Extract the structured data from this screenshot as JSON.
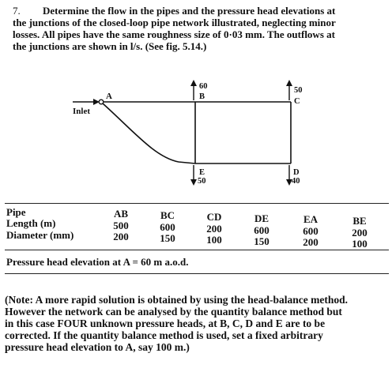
{
  "problem": {
    "number": "7.",
    "lines": [
      "Determine the flow in the pipes and the pressure head elevations at",
      "the junctions of the closed-loop pipe network illustrated, neglecting minor",
      "losses. All pipes have the same roughness size of 0·03 mm. The outflows at",
      "the junctions are shown in l/s. (See fig. 5.14.)"
    ]
  },
  "diagram": {
    "inlet_label": "Inlet",
    "nodes": {
      "A": {
        "label": "A"
      },
      "B": {
        "label": "B",
        "outflow": "60"
      },
      "C": {
        "label": "C",
        "outflow": "50"
      },
      "D": {
        "label": "D",
        "outflow": "40"
      },
      "E": {
        "label": "E",
        "outflow": "50"
      }
    }
  },
  "table": {
    "row_labels": [
      "Pipe",
      "Length (m)",
      "Diameter (mm)"
    ],
    "columns": [
      {
        "pipe": "AB",
        "length": "500",
        "diameter": "200"
      },
      {
        "pipe": "BC",
        "length": "600",
        "diameter": "150"
      },
      {
        "pipe": "CD",
        "length": "200",
        "diameter": "100"
      },
      {
        "pipe": "DE",
        "length": "600",
        "diameter": "150"
      },
      {
        "pipe": "EA",
        "length": "600",
        "diameter": "200"
      },
      {
        "pipe": "BE",
        "length": "200",
        "diameter": "100"
      }
    ]
  },
  "pressure_line": "Pressure head elevation at A = 60 m a.o.d.",
  "note": {
    "lines": [
      "(Note: A more rapid solution is obtained by using the head-balance method.",
      "However the network can be analysed by the quantity balance method but",
      "in this case FOUR unknown pressure heads, at B, C, D and E are to be",
      "corrected. If the quantity balance method is used, set a fixed arbitrary",
      "pressure head elevation to A, say 100 m.)"
    ]
  }
}
